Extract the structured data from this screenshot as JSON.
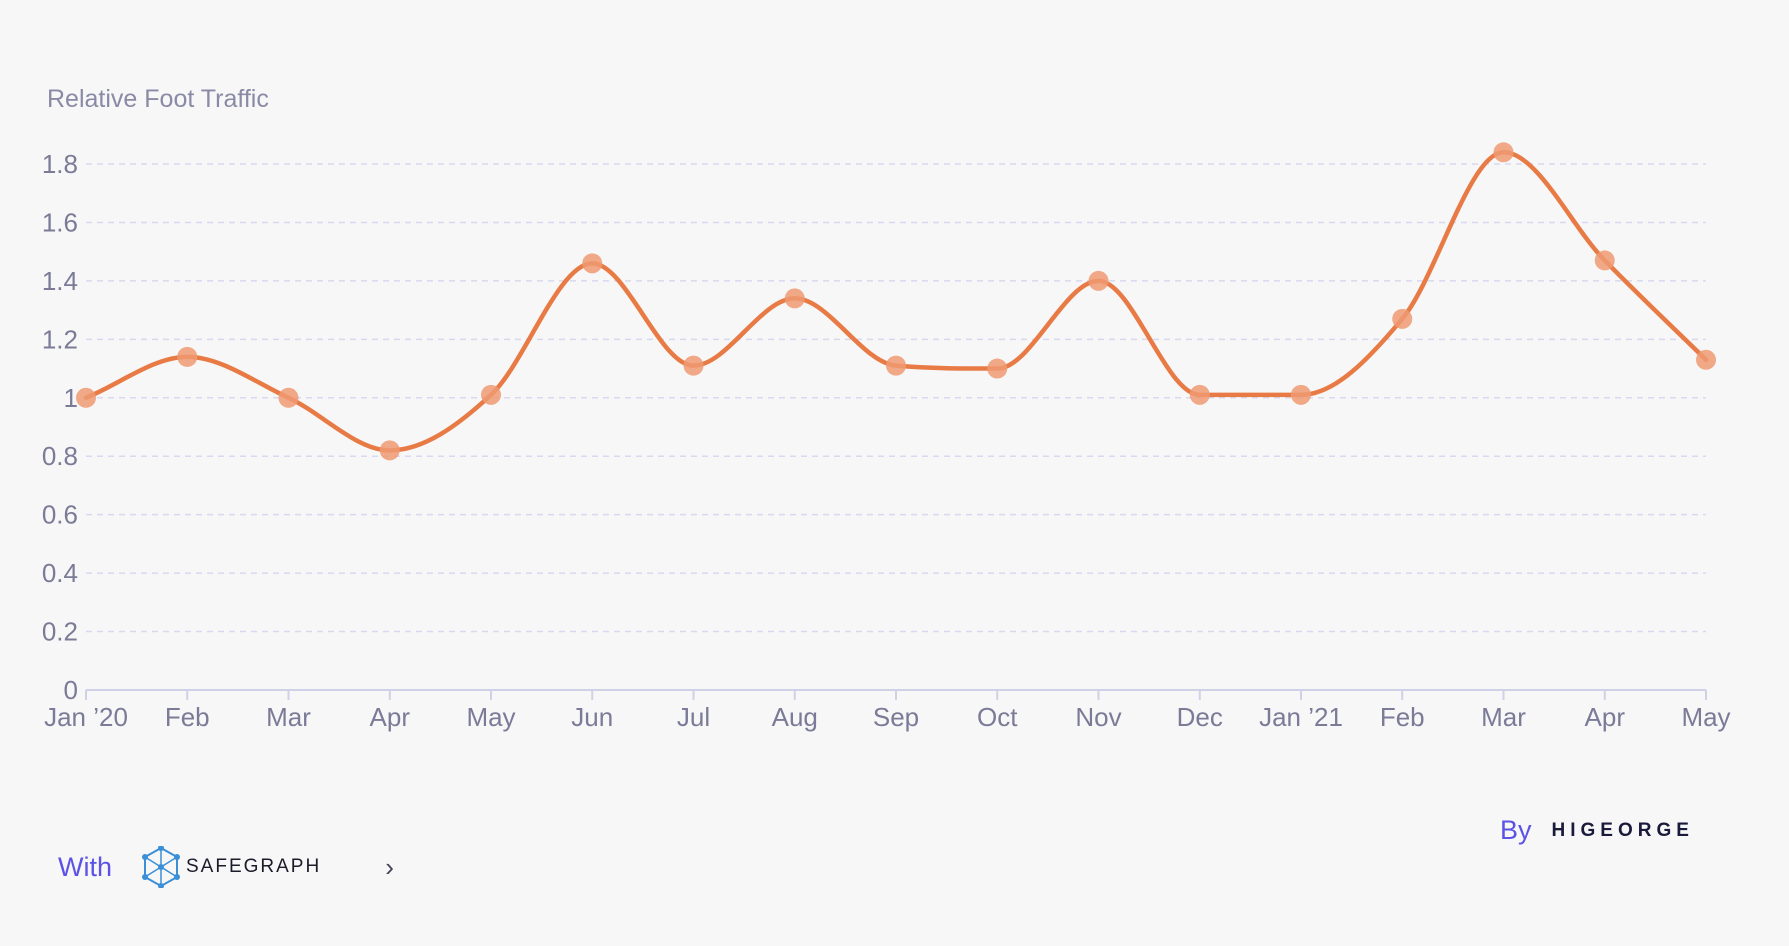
{
  "chart_data": {
    "type": "line",
    "ylabel": "Relative Foot Traffic",
    "x": [
      "Jan ’20",
      "Feb",
      "Mar",
      "Apr",
      "May",
      "Jun",
      "Jul",
      "Aug",
      "Sep",
      "Oct",
      "Nov",
      "Dec",
      "Jan ’21",
      "Feb",
      "Mar",
      "Apr",
      "May"
    ],
    "series": [
      {
        "values": [
          1.0,
          1.14,
          1.0,
          0.82,
          1.01,
          1.46,
          1.11,
          1.34,
          1.11,
          1.1,
          1.4,
          1.01,
          1.01,
          1.27,
          1.84,
          1.47,
          1.13
        ]
      }
    ],
    "ylim": [
      0,
      1.8
    ],
    "yticks": [
      "0",
      "0.2",
      "0.4",
      "0.6",
      "0.8",
      "1",
      "1.2",
      "1.4",
      "1.6",
      "1.8"
    ],
    "grid": true,
    "colors": {
      "line": "#e87b45",
      "points": "#ef9a73"
    }
  },
  "footer": {
    "with_label": "With",
    "safegraph_logo_text": "SAFEGRAPH",
    "chevron_icon": "chevron-right-icon",
    "by_label": "By",
    "higeorge_logo_text": "HIGEORGE"
  }
}
